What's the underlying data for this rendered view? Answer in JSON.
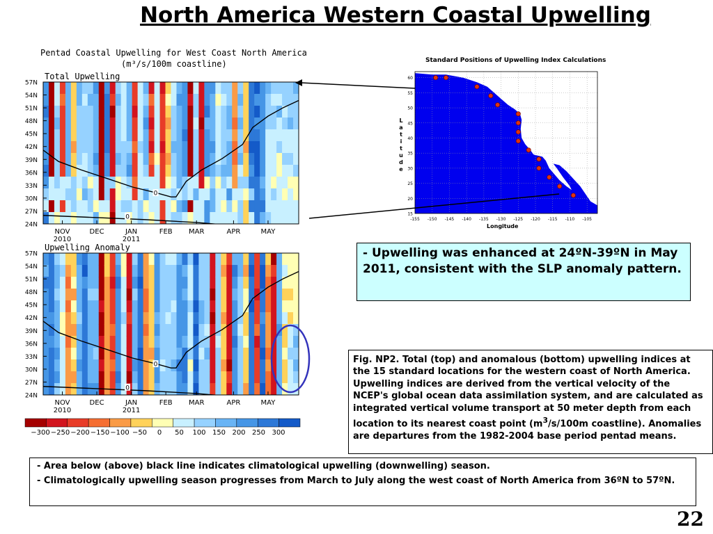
{
  "slide": {
    "title": "North America Western Coastal Upwelling",
    "page_number": "22"
  },
  "figure": {
    "title_line1": "Pentad Coastal Upwelling for West Coast North America",
    "title_line2": "(m³/s/100m coastline)",
    "panels": [
      {
        "label": "Total Upwelling"
      },
      {
        "label": "Upwelling Anomaly"
      }
    ],
    "y_ticks": [
      "57N",
      "54N",
      "51N",
      "48N",
      "45N",
      "42N",
      "39N",
      "36N",
      "33N",
      "30N",
      "27N",
      "24N"
    ],
    "x_ticks": [
      {
        "line1": "NOV",
        "line2": "2010"
      },
      {
        "line1": "DEC",
        "line2": ""
      },
      {
        "line1": "JAN",
        "line2": "2011"
      },
      {
        "line1": "FEB",
        "line2": ""
      },
      {
        "line1": "MAR",
        "line2": ""
      },
      {
        "line1": "APR",
        "line2": ""
      },
      {
        "line1": "MAY",
        "line2": ""
      }
    ],
    "contour_label": "0",
    "colorbar": {
      "labels": [
        "−300",
        "−250",
        "−200",
        "−150",
        "−100",
        "−50",
        "0",
        "50",
        "100",
        "150",
        "200",
        "250",
        "300"
      ],
      "colors": [
        "#a50000",
        "#d2141e",
        "#e83c28",
        "#f56e32",
        "#fa9b46",
        "#ffd25a",
        "#ffffb4",
        "#c8f0ff",
        "#96d2ff",
        "#69b4f5",
        "#4696e6",
        "#2d78d7",
        "#145ac8"
      ]
    }
  },
  "map": {
    "title": "Standard Positions of Upwelling Index Calculations",
    "ylabel": "Latitude",
    "xlabel": "Longitude",
    "lat_ticks": [
      "60",
      "55",
      "50",
      "45",
      "40",
      "35",
      "30",
      "25",
      "20",
      "15"
    ],
    "lon_ticks": [
      "-155",
      "-150",
      "-145",
      "-140",
      "-135",
      "-130",
      "-125",
      "-120",
      "-115",
      "-110",
      "-105"
    ],
    "stations": [
      {
        "lon": -149,
        "lat": 60
      },
      {
        "lon": -146,
        "lat": 60
      },
      {
        "lon": -137,
        "lat": 57
      },
      {
        "lon": -133,
        "lat": 54
      },
      {
        "lon": -131,
        "lat": 51
      },
      {
        "lon": -125,
        "lat": 48
      },
      {
        "lon": -125,
        "lat": 45
      },
      {
        "lon": -125,
        "lat": 42
      },
      {
        "lon": -125,
        "lat": 39
      },
      {
        "lon": -122,
        "lat": 36
      },
      {
        "lon": -119,
        "lat": 33
      },
      {
        "lon": -119,
        "lat": 30
      },
      {
        "lon": -116,
        "lat": 27
      },
      {
        "lon": -113,
        "lat": 24
      },
      {
        "lon": -109,
        "lat": 21
      }
    ]
  },
  "note_enhanced": {
    "dash": "- ",
    "text": "Upwelling was enhanced at 24ºN-39ºN in May 2011, consistent with the SLP anomaly pattern."
  },
  "caption": {
    "text_part1": "Fig. NP2. Total (top) and anomalous (bottom) upwelling indices at the 15 standard locations for the western coast of North America. Upwelling indices are derived from the vertical velocity of the NCEP's global ocean data assimilation system, and are calculated as integrated vertical volume transport at 50 meter depth from each location to its nearest coast point (m",
    "superscript": "3",
    "text_part2": "/s/100m coastline). Anomalies are departures from the 1982-2004 base period pentad means."
  },
  "notes": [
    {
      "dash": "- ",
      "text": "Area below (above) black line indicates climatological upwelling (downwelling) season."
    },
    {
      "dash": "- ",
      "text": "Climatologically upwelling season progresses from March to July along the west coast of North America from 36ºN to 57ºN."
    }
  ]
}
